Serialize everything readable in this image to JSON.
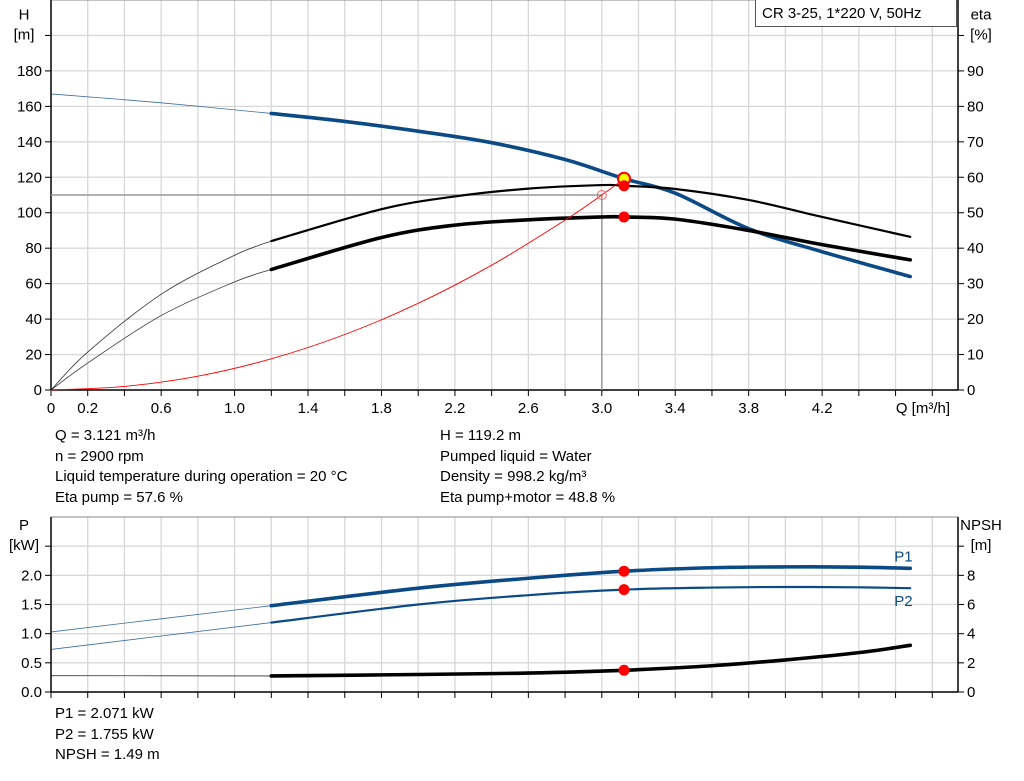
{
  "chart_data": [
    {
      "type": "line",
      "title": "CR 3-25, 1*220 V, 50Hz",
      "xlabel": "Q [m³/h]",
      "ylabel_left": {
        "name": "H",
        "unit": "[m]"
      },
      "ylabel_right": {
        "name": "eta",
        "unit": "[%]"
      },
      "xlim": [
        0,
        4.94
      ],
      "ylim_left": [
        0,
        220
      ],
      "ylim_right": [
        0,
        110
      ],
      "x_ticks": [
        "0",
        "0.2",
        "0.6",
        "1.0",
        "1.4",
        "1.8",
        "2.2",
        "2.6",
        "3.0",
        "3.4",
        "3.8",
        "4.2"
      ],
      "y_ticks_left": [
        "0",
        "20",
        "40",
        "60",
        "80",
        "100",
        "120",
        "140",
        "160",
        "180"
      ],
      "y_ticks_right": [
        "0",
        "10",
        "20",
        "30",
        "40",
        "50",
        "60",
        "70",
        "80",
        "90"
      ],
      "grid": true,
      "series": [
        {
          "id": "H",
          "axis": "left",
          "color": "#0b4a85",
          "x": [
            0,
            0.6,
            1.2,
            1.6,
            2.0,
            2.4,
            2.8,
            3.121,
            3.4,
            3.8,
            4.2,
            4.68
          ],
          "y": [
            167,
            162,
            156,
            151.5,
            146,
            139.5,
            130,
            119.2,
            111,
            91,
            78,
            64
          ]
        },
        {
          "id": "eta-pump",
          "axis": "right",
          "color": "#000000",
          "x": [
            0,
            0.2,
            0.6,
            1.0,
            1.2,
            1.8,
            2.2,
            2.6,
            3.0,
            3.121,
            3.4,
            3.8,
            4.2,
            4.68
          ],
          "y": [
            0,
            10.7,
            27,
            38,
            42,
            51,
            54.6,
            56.8,
            57.8,
            57.6,
            56.7,
            53.6,
            48.8,
            43.2
          ]
        },
        {
          "id": "eta-pump-motor",
          "axis": "right",
          "color": "#000000",
          "x": [
            0,
            0.2,
            0.6,
            1.0,
            1.2,
            1.8,
            2.2,
            2.6,
            3.0,
            3.121,
            3.4,
            3.8,
            4.2,
            4.68
          ],
          "y": [
            0,
            7.6,
            21,
            30.5,
            34,
            43,
            46.5,
            48,
            48.8,
            48.8,
            48.2,
            45,
            41,
            36.7
          ]
        },
        {
          "id": "system-curve",
          "axis": "left",
          "color": "#ff0000",
          "x": [
            0,
            0.4,
            0.8,
            1.2,
            1.6,
            2.0,
            2.4,
            2.8,
            3.0,
            3.121
          ],
          "y": [
            0,
            2,
            7.8,
            17.6,
            31.3,
            48.9,
            70.4,
            95.8,
            110,
            119.2
          ]
        }
      ],
      "reference": {
        "q": 3.0,
        "h": 110
      },
      "duty_points": [
        {
          "series": "H",
          "x": 3.121,
          "y": 119.2,
          "fill": "#ffff00"
        },
        {
          "series": "eta-pump",
          "x": 3.121,
          "y": 57.6,
          "fill": "#ff0000"
        },
        {
          "series": "eta-pump-motor",
          "x": 3.121,
          "y": 48.8,
          "fill": "#ff0000"
        }
      ]
    },
    {
      "type": "line",
      "ylabel_left": {
        "name": "P",
        "unit": "[kW]"
      },
      "ylabel_right": {
        "name": "NPSH",
        "unit": "[m]"
      },
      "xlim": [
        0,
        4.94
      ],
      "ylim_left": [
        0,
        3.0
      ],
      "ylim_right": [
        0,
        12
      ],
      "y_ticks_left": [
        "0.0",
        "0.5",
        "1.0",
        "1.5",
        "2.0"
      ],
      "y_ticks_right": [
        "0",
        "2",
        "4",
        "6",
        "8"
      ],
      "grid": true,
      "series": [
        {
          "id": "P1",
          "name": "P1",
          "axis": "left",
          "color": "#0b4a85",
          "x": [
            0,
            1.2,
            2.0,
            2.6,
            3.121,
            3.6,
            4.0,
            4.4,
            4.68
          ],
          "y": [
            1.03,
            1.48,
            1.78,
            1.95,
            2.071,
            2.13,
            2.145,
            2.14,
            2.12
          ]
        },
        {
          "id": "P2",
          "name": "P2",
          "axis": "left",
          "color": "#0b4a85",
          "x": [
            0,
            1.2,
            2.0,
            2.6,
            3.121,
            3.6,
            4.0,
            4.4,
            4.68
          ],
          "y": [
            0.73,
            1.19,
            1.5,
            1.66,
            1.755,
            1.79,
            1.8,
            1.795,
            1.78
          ]
        },
        {
          "id": "NPSH",
          "axis": "right",
          "color": "#000000",
          "x": [
            0,
            1.2,
            2.0,
            2.6,
            3.121,
            3.6,
            4.0,
            4.4,
            4.68
          ],
          "y": [
            1.12,
            1.1,
            1.2,
            1.3,
            1.49,
            1.8,
            2.2,
            2.7,
            3.2
          ]
        }
      ],
      "duty_points": [
        {
          "series": "P1",
          "x": 3.121,
          "y": 2.071,
          "fill": "#ff0000"
        },
        {
          "series": "P2",
          "x": 3.121,
          "y": 1.755,
          "fill": "#ff0000"
        },
        {
          "series": "NPSH",
          "x": 3.121,
          "y": 1.49,
          "fill": "#ff0000"
        }
      ]
    }
  ],
  "info": {
    "left": [
      "Q = 3.121 m³/h",
      "n = 2900 rpm",
      "Liquid temperature during operation = 20 °C",
      "Eta pump = 57.6 %"
    ],
    "right": [
      "H = 119.2 m",
      "Pumped liquid = Water",
      "Density = 998.2 kg/m³",
      "Eta pump+motor = 48.8 %"
    ],
    "bottom": [
      "P1 = 2.071 kW",
      "P2 = 1.755 kW",
      "NPSH = 1.49 m"
    ]
  }
}
